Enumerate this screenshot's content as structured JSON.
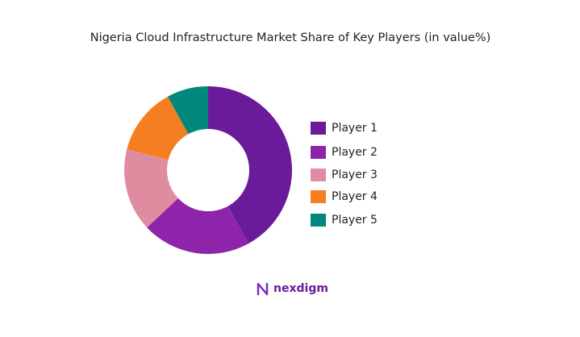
{
  "chart_data": {
    "type": "donut",
    "title": "Nigeria Cloud Infrastructure Market Share of Key Players (in value%)",
    "categories": [
      "Player 1",
      "Player 2",
      "Player 3",
      "Player 4",
      "Player 5"
    ],
    "values": [
      42,
      21,
      16,
      13,
      8
    ],
    "colors": [
      "#6a1b9a",
      "#8e24aa",
      "#e08ca0",
      "#f57f20",
      "#00897b"
    ],
    "legend": "right"
  },
  "footer": {
    "brand": "nexdigm"
  }
}
